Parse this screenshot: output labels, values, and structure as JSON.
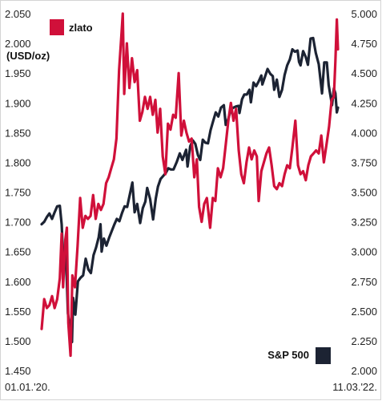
{
  "chart_data": {
    "type": "line",
    "title": "",
    "left_axis": {
      "label": "(USD/oz)",
      "ylim": [
        1450,
        2050
      ],
      "ticks": [
        "1.450",
        "1.500",
        "1.550",
        "1.600",
        "1.650",
        "1.700",
        "1.750",
        "1.800",
        "1.850",
        "1.900",
        "1.950",
        "2.000",
        "2.050"
      ]
    },
    "right_axis": {
      "ylim": [
        2000,
        5000
      ],
      "ticks": [
        "2.000",
        "2.250",
        "2.500",
        "2.750",
        "3.000",
        "3.250",
        "3.500",
        "3.750",
        "4.000",
        "4.250",
        "4.500",
        "4.750",
        "5.000"
      ]
    },
    "x_axis": {
      "range": [
        "2020-01-01",
        "2022-03-11"
      ],
      "tick_labels": [
        "01.01.'20.",
        "11.03.'22."
      ]
    },
    "legend": {
      "gold": "zlato",
      "sp500": "S&P 500"
    },
    "colors": {
      "gold": "#d0103a",
      "sp500": "#1c2333"
    },
    "series": [
      {
        "name": "zlato",
        "axis": "left",
        "color": "#d0103a",
        "points": [
          [
            "2020-01-01",
            1520
          ],
          [
            "2020-01-08",
            1570
          ],
          [
            "2020-01-15",
            1555
          ],
          [
            "2020-01-22",
            1560
          ],
          [
            "2020-01-29",
            1575
          ],
          [
            "2020-02-05",
            1555
          ],
          [
            "2020-02-12",
            1570
          ],
          [
            "2020-02-19",
            1605
          ],
          [
            "2020-02-24",
            1680
          ],
          [
            "2020-02-28",
            1590
          ],
          [
            "2020-03-05",
            1670
          ],
          [
            "2020-03-09",
            1690
          ],
          [
            "2020-03-13",
            1530
          ],
          [
            "2020-03-19",
            1475
          ],
          [
            "2020-03-24",
            1610
          ],
          [
            "2020-03-31",
            1590
          ],
          [
            "2020-04-07",
            1660
          ],
          [
            "2020-04-14",
            1740
          ],
          [
            "2020-04-21",
            1690
          ],
          [
            "2020-04-28",
            1710
          ],
          [
            "2020-05-05",
            1705
          ],
          [
            "2020-05-12",
            1710
          ],
          [
            "2020-05-19",
            1745
          ],
          [
            "2020-05-26",
            1705
          ],
          [
            "2020-06-02",
            1730
          ],
          [
            "2020-06-09",
            1720
          ],
          [
            "2020-06-16",
            1730
          ],
          [
            "2020-06-23",
            1765
          ],
          [
            "2020-06-30",
            1775
          ],
          [
            "2020-07-07",
            1790
          ],
          [
            "2020-07-14",
            1805
          ],
          [
            "2020-07-21",
            1840
          ],
          [
            "2020-07-28",
            1955
          ],
          [
            "2020-08-04",
            2020
          ],
          [
            "2020-08-07",
            2050
          ],
          [
            "2020-08-11",
            1915
          ],
          [
            "2020-08-18",
            2000
          ],
          [
            "2020-08-25",
            1925
          ],
          [
            "2020-09-01",
            1975
          ],
          [
            "2020-09-08",
            1935
          ],
          [
            "2020-09-15",
            1955
          ],
          [
            "2020-09-22",
            1870
          ],
          [
            "2020-09-29",
            1885
          ],
          [
            "2020-10-06",
            1910
          ],
          [
            "2020-10-13",
            1890
          ],
          [
            "2020-10-20",
            1910
          ],
          [
            "2020-10-27",
            1880
          ],
          [
            "2020-11-03",
            1905
          ],
          [
            "2020-11-09",
            1850
          ],
          [
            "2020-11-16",
            1890
          ],
          [
            "2020-11-23",
            1810
          ],
          [
            "2020-11-30",
            1780
          ],
          [
            "2020-12-07",
            1865
          ],
          [
            "2020-12-14",
            1855
          ],
          [
            "2020-12-21",
            1880
          ],
          [
            "2020-12-28",
            1875
          ],
          [
            "2021-01-05",
            1950
          ],
          [
            "2021-01-12",
            1845
          ],
          [
            "2021-01-19",
            1870
          ],
          [
            "2021-01-26",
            1850
          ],
          [
            "2021-02-02",
            1835
          ],
          [
            "2021-02-09",
            1840
          ],
          [
            "2021-02-16",
            1775
          ],
          [
            "2021-02-23",
            1805
          ],
          [
            "2021-03-01",
            1725
          ],
          [
            "2021-03-08",
            1700
          ],
          [
            "2021-03-15",
            1730
          ],
          [
            "2021-03-22",
            1740
          ],
          [
            "2021-03-31",
            1690
          ],
          [
            "2021-04-07",
            1740
          ],
          [
            "2021-04-14",
            1735
          ],
          [
            "2021-04-21",
            1790
          ],
          [
            "2021-04-28",
            1775
          ],
          [
            "2021-05-05",
            1790
          ],
          [
            "2021-05-12",
            1830
          ],
          [
            "2021-05-19",
            1870
          ],
          [
            "2021-05-26",
            1900
          ],
          [
            "2021-06-02",
            1870
          ],
          [
            "2021-06-09",
            1890
          ],
          [
            "2021-06-16",
            1820
          ],
          [
            "2021-06-23",
            1780
          ],
          [
            "2021-06-30",
            1765
          ],
          [
            "2021-07-07",
            1800
          ],
          [
            "2021-07-14",
            1825
          ],
          [
            "2021-07-21",
            1805
          ],
          [
            "2021-07-28",
            1820
          ],
          [
            "2021-08-04",
            1810
          ],
          [
            "2021-08-09",
            1735
          ],
          [
            "2021-08-16",
            1785
          ],
          [
            "2021-08-23",
            1800
          ],
          [
            "2021-08-30",
            1815
          ],
          [
            "2021-09-06",
            1825
          ],
          [
            "2021-09-13",
            1795
          ],
          [
            "2021-09-20",
            1760
          ],
          [
            "2021-09-27",
            1755
          ],
          [
            "2021-10-04",
            1765
          ],
          [
            "2021-10-11",
            1760
          ],
          [
            "2021-10-18",
            1780
          ],
          [
            "2021-10-25",
            1795
          ],
          [
            "2021-11-01",
            1790
          ],
          [
            "2021-11-08",
            1825
          ],
          [
            "2021-11-16",
            1870
          ],
          [
            "2021-11-23",
            1795
          ],
          [
            "2021-11-30",
            1780
          ],
          [
            "2021-12-07",
            1785
          ],
          [
            "2021-12-14",
            1770
          ],
          [
            "2021-12-21",
            1795
          ],
          [
            "2021-12-28",
            1810
          ],
          [
            "2022-01-04",
            1815
          ],
          [
            "2022-01-11",
            1820
          ],
          [
            "2022-01-18",
            1815
          ],
          [
            "2022-01-25",
            1845
          ],
          [
            "2022-02-01",
            1800
          ],
          [
            "2022-02-08",
            1830
          ],
          [
            "2022-02-15",
            1860
          ],
          [
            "2022-02-22",
            1905
          ],
          [
            "2022-02-28",
            1910
          ],
          [
            "2022-03-04",
            1970
          ],
          [
            "2022-03-08",
            2040
          ],
          [
            "2022-03-11",
            1990
          ]
        ]
      },
      {
        "name": "S&P 500",
        "axis": "right",
        "color": "#1c2333",
        "points": [
          [
            "2020-01-01",
            3230
          ],
          [
            "2020-01-08",
            3250
          ],
          [
            "2020-01-15",
            3290
          ],
          [
            "2020-01-22",
            3320
          ],
          [
            "2020-01-29",
            3275
          ],
          [
            "2020-02-05",
            3330
          ],
          [
            "2020-02-12",
            3380
          ],
          [
            "2020-02-19",
            3385
          ],
          [
            "2020-02-24",
            3230
          ],
          [
            "2020-02-28",
            2955
          ],
          [
            "2020-03-05",
            3020
          ],
          [
            "2020-03-09",
            2750
          ],
          [
            "2020-03-12",
            2480
          ],
          [
            "2020-03-16",
            2390
          ],
          [
            "2020-03-23",
            2240
          ],
          [
            "2020-03-26",
            2610
          ],
          [
            "2020-04-01",
            2470
          ],
          [
            "2020-04-08",
            2750
          ],
          [
            "2020-04-15",
            2780
          ],
          [
            "2020-04-22",
            2800
          ],
          [
            "2020-04-29",
            2940
          ],
          [
            "2020-05-06",
            2850
          ],
          [
            "2020-05-13",
            2820
          ],
          [
            "2020-05-20",
            2970
          ],
          [
            "2020-05-27",
            3035
          ],
          [
            "2020-06-03",
            3120
          ],
          [
            "2020-06-08",
            3230
          ],
          [
            "2020-06-11",
            3000
          ],
          [
            "2020-06-17",
            3110
          ],
          [
            "2020-06-24",
            3050
          ],
          [
            "2020-07-01",
            3115
          ],
          [
            "2020-07-08",
            3170
          ],
          [
            "2020-07-15",
            3225
          ],
          [
            "2020-07-22",
            3275
          ],
          [
            "2020-07-29",
            3255
          ],
          [
            "2020-08-05",
            3325
          ],
          [
            "2020-08-12",
            3380
          ],
          [
            "2020-08-19",
            3375
          ],
          [
            "2020-08-26",
            3480
          ],
          [
            "2020-09-02",
            3580
          ],
          [
            "2020-09-08",
            3330
          ],
          [
            "2020-09-15",
            3400
          ],
          [
            "2020-09-23",
            3240
          ],
          [
            "2020-09-30",
            3365
          ],
          [
            "2020-10-07",
            3420
          ],
          [
            "2020-10-12",
            3535
          ],
          [
            "2020-10-20",
            3440
          ],
          [
            "2020-10-28",
            3270
          ],
          [
            "2020-11-04",
            3445
          ],
          [
            "2020-11-10",
            3545
          ],
          [
            "2020-11-17",
            3610
          ],
          [
            "2020-11-24",
            3635
          ],
          [
            "2020-12-01",
            3660
          ],
          [
            "2020-12-08",
            3700
          ],
          [
            "2020-12-15",
            3690
          ],
          [
            "2020-12-22",
            3690
          ],
          [
            "2020-12-31",
            3755
          ],
          [
            "2021-01-08",
            3825
          ],
          [
            "2021-01-15",
            3770
          ],
          [
            "2021-01-25",
            3855
          ],
          [
            "2021-01-29",
            3715
          ],
          [
            "2021-02-05",
            3885
          ],
          [
            "2021-02-12",
            3935
          ],
          [
            "2021-02-19",
            3905
          ],
          [
            "2021-02-26",
            3810
          ],
          [
            "2021-03-04",
            3770
          ],
          [
            "2021-03-11",
            3940
          ],
          [
            "2021-03-18",
            3915
          ],
          [
            "2021-03-25",
            3910
          ],
          [
            "2021-04-01",
            4020
          ],
          [
            "2021-04-08",
            4095
          ],
          [
            "2021-04-15",
            4170
          ],
          [
            "2021-04-22",
            4135
          ],
          [
            "2021-04-29",
            4210
          ],
          [
            "2021-05-07",
            4230
          ],
          [
            "2021-05-12",
            4065
          ],
          [
            "2021-05-19",
            4115
          ],
          [
            "2021-05-26",
            4195
          ],
          [
            "2021-06-02",
            4210
          ],
          [
            "2021-06-09",
            4220
          ],
          [
            "2021-06-16",
            4225
          ],
          [
            "2021-06-18",
            4165
          ],
          [
            "2021-06-25",
            4280
          ],
          [
            "2021-07-01",
            4320
          ],
          [
            "2021-07-08",
            4320
          ],
          [
            "2021-07-15",
            4360
          ],
          [
            "2021-07-19",
            4255
          ],
          [
            "2021-07-26",
            4420
          ],
          [
            "2021-08-02",
            4390
          ],
          [
            "2021-08-09",
            4430
          ],
          [
            "2021-08-16",
            4480
          ],
          [
            "2021-08-19",
            4405
          ],
          [
            "2021-08-26",
            4470
          ],
          [
            "2021-09-02",
            4535
          ],
          [
            "2021-09-09",
            4495
          ],
          [
            "2021-09-16",
            4475
          ],
          [
            "2021-09-20",
            4360
          ],
          [
            "2021-09-27",
            4445
          ],
          [
            "2021-10-04",
            4300
          ],
          [
            "2021-10-11",
            4360
          ],
          [
            "2021-10-18",
            4485
          ],
          [
            "2021-10-25",
            4565
          ],
          [
            "2021-11-01",
            4615
          ],
          [
            "2021-11-08",
            4700
          ],
          [
            "2021-11-15",
            4680
          ],
          [
            "2021-11-22",
            4690
          ],
          [
            "2021-11-26",
            4595
          ],
          [
            "2021-11-30",
            4565
          ],
          [
            "2021-12-07",
            4685
          ],
          [
            "2021-12-14",
            4635
          ],
          [
            "2021-12-20",
            4570
          ],
          [
            "2021-12-27",
            4790
          ],
          [
            "2022-01-03",
            4795
          ],
          [
            "2022-01-10",
            4670
          ],
          [
            "2022-01-18",
            4575
          ],
          [
            "2022-01-27",
            4330
          ],
          [
            "2022-02-02",
            4590
          ],
          [
            "2022-02-09",
            4590
          ],
          [
            "2022-02-14",
            4400
          ],
          [
            "2022-02-23",
            4230
          ],
          [
            "2022-02-28",
            4370
          ],
          [
            "2022-03-04",
            4330
          ],
          [
            "2022-03-08",
            4170
          ],
          [
            "2022-03-11",
            4210
          ]
        ]
      }
    ]
  }
}
